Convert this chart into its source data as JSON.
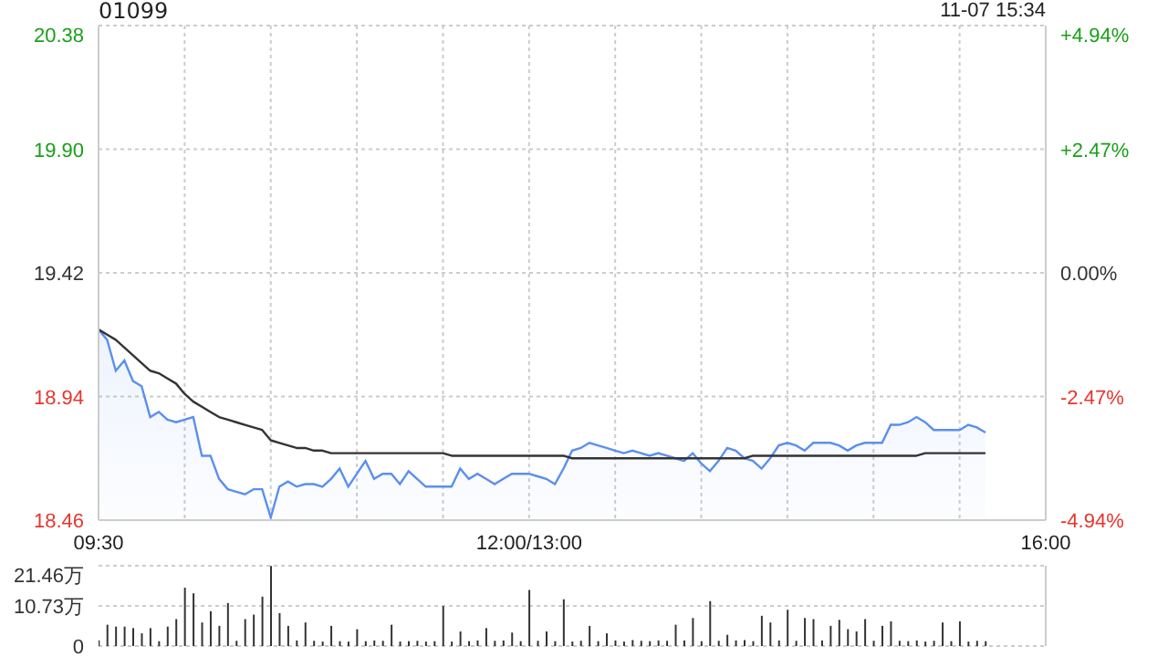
{
  "chart_data": [
    {
      "type": "area",
      "title": "01099",
      "annotations": [
        "11-07 15:34"
      ],
      "categories": [
        "09:30",
        null,
        null,
        null,
        null,
        null,
        null,
        null,
        null,
        null,
        null,
        null,
        null,
        null,
        null,
        null,
        null,
        null,
        null,
        null,
        null,
        null,
        null,
        null,
        null,
        null,
        null,
        null,
        null,
        null,
        null,
        null,
        null,
        null,
        null,
        null,
        null,
        null,
        null,
        null,
        null,
        null,
        null,
        null,
        null,
        null,
        null,
        null,
        null,
        null,
        "12:00/13:00",
        null,
        null,
        null,
        null,
        null,
        null,
        null,
        null,
        null,
        null,
        null,
        null,
        null,
        null,
        null,
        null,
        null,
        null,
        null,
        null,
        null,
        null,
        null,
        null,
        null,
        null,
        null,
        null,
        null,
        null,
        null,
        null,
        null,
        null,
        null,
        null,
        null,
        null,
        null,
        null,
        null,
        null,
        null,
        null,
        null,
        null,
        null,
        null,
        null,
        null,
        null,
        null,
        null,
        null,
        null,
        null,
        null,
        null,
        null,
        "16:00"
      ],
      "ylim": [
        18.46,
        20.38
      ],
      "yticks": [
        18.46,
        18.94,
        19.42,
        {
          "value": 19.9,
          "label": "19.90"
        },
        20.38
      ],
      "y2lim": [
        -4.94,
        4.94
      ],
      "y2ticks": [
        {
          "value": -4.94,
          "label": "-4.94%"
        },
        {
          "value": -2.47,
          "label": "-2.47%"
        },
        {
          "value": 0,
          "label": "0.00%"
        },
        {
          "value": 2.47,
          "label": "+2.47%"
        },
        {
          "value": 4.94,
          "label": "+4.94%"
        }
      ],
      "grid": true,
      "series": [
        {
          "color": "#5b8ff0",
          "values": [
            19.2,
            19.16,
            19.04,
            19.08,
            19.0,
            18.98,
            18.86,
            18.88,
            18.85,
            18.84,
            18.85,
            18.86,
            18.71,
            18.71,
            18.62,
            18.58,
            18.57,
            18.56,
            18.58,
            18.58,
            18.47,
            18.59,
            18.61,
            18.59,
            18.6,
            18.6,
            18.59,
            18.62,
            18.66,
            18.59,
            18.64,
            18.69,
            18.62,
            18.64,
            18.64,
            18.6,
            18.65,
            18.62,
            18.59,
            18.59,
            18.59,
            18.59,
            18.66,
            18.62,
            18.64,
            18.62,
            18.6,
            18.62,
            18.64,
            18.64,
            18.64,
            18.63,
            18.62,
            18.6,
            18.66,
            18.73,
            18.74,
            18.76,
            18.75,
            18.74,
            18.73,
            18.72,
            18.73,
            18.72,
            18.71,
            18.72,
            18.71,
            18.7,
            18.69,
            18.72,
            18.68,
            18.65,
            18.69,
            18.74,
            18.73,
            18.7,
            18.69,
            18.66,
            18.7,
            18.75,
            18.76,
            18.75,
            18.73,
            18.76,
            18.76,
            18.76,
            18.75,
            18.73,
            18.75,
            18.76,
            18.76,
            18.76,
            18.83,
            18.83,
            18.84,
            18.86,
            18.84,
            18.81,
            18.81,
            18.81,
            18.81,
            18.83,
            18.82,
            18.8,
            null,
            null,
            null,
            null,
            null,
            null,
            null
          ]
        },
        {
          "type": "line",
          "color": "#333333",
          "values": [
            19.2,
            19.18,
            19.16,
            19.13,
            19.1,
            19.07,
            19.04,
            19.03,
            19.01,
            18.99,
            18.95,
            18.92,
            18.9,
            18.88,
            18.86,
            18.85,
            18.84,
            18.83,
            18.82,
            18.81,
            18.77,
            18.76,
            18.75,
            18.74,
            18.74,
            18.73,
            18.73,
            18.72,
            18.72,
            18.72,
            18.72,
            18.72,
            18.72,
            18.72,
            18.72,
            18.72,
            18.72,
            18.72,
            18.72,
            18.72,
            18.72,
            18.71,
            18.71,
            18.71,
            18.71,
            18.71,
            18.71,
            18.71,
            18.71,
            18.71,
            18.71,
            18.71,
            18.71,
            18.71,
            18.71,
            18.7,
            18.7,
            18.7,
            18.7,
            18.7,
            18.7,
            18.7,
            18.7,
            18.7,
            18.7,
            18.7,
            18.7,
            18.7,
            18.7,
            18.7,
            18.7,
            18.7,
            18.7,
            18.7,
            18.7,
            18.7,
            18.71,
            18.71,
            18.71,
            18.71,
            18.71,
            18.71,
            18.71,
            18.71,
            18.71,
            18.71,
            18.71,
            18.71,
            18.71,
            18.71,
            18.71,
            18.71,
            18.71,
            18.71,
            18.71,
            18.71,
            18.72,
            18.72,
            18.72,
            18.72,
            18.72,
            18.72,
            18.72,
            18.72,
            null,
            null,
            null,
            null,
            null,
            null,
            null
          ]
        }
      ]
    },
    {
      "type": "bar",
      "tick_labels": "y",
      "grid": "y",
      "categories": [
        null,
        null,
        null,
        null,
        null,
        null,
        null,
        null,
        null,
        null,
        null,
        null,
        null,
        null,
        null,
        null,
        null,
        null,
        null,
        null,
        null,
        null,
        null,
        null,
        null,
        null,
        null,
        null,
        null,
        null,
        null,
        null,
        null,
        null,
        null,
        null,
        null,
        null,
        null,
        null,
        null,
        null,
        null,
        null,
        null,
        null,
        null,
        null,
        null,
        null,
        null,
        null,
        null,
        null,
        null,
        null,
        null,
        null,
        null,
        null,
        null,
        null,
        null,
        null,
        null,
        null,
        null,
        null,
        null,
        null,
        null,
        null,
        null,
        null,
        null,
        null,
        null,
        null,
        null,
        null,
        null,
        null,
        null,
        null,
        null,
        null,
        null,
        null,
        null,
        null,
        null,
        null,
        null,
        null,
        null,
        null,
        null,
        null,
        null,
        null,
        null,
        null,
        null,
        null,
        null,
        null,
        null,
        null,
        null,
        null,
        null
      ],
      "ylim": [
        0,
        21.46
      ],
      "yticks": [
        {
          "value": 0,
          "label": "0"
        },
        {
          "value": 10.73,
          "label": "10.73万"
        },
        {
          "value": 21.46,
          "label": "21.46万"
        }
      ],
      "series": [
        {
          "color": "#333333",
          "values": [
            1.5,
            5.7,
            5.2,
            5.2,
            4.8,
            3.4,
            4.8,
            1.3,
            5.2,
            7.2,
            15.6,
            14.1,
            6.3,
            9.3,
            5.4,
            11.5,
            1.4,
            7.2,
            8.4,
            13.2,
            21.4,
            8.8,
            5.4,
            1.5,
            6.3,
            1.4,
            1.2,
            5.4,
            1.3,
            1.2,
            4.5,
            1.3,
            1.5,
            1.4,
            5.7,
            1.2,
            1.3,
            1.4,
            1.2,
            1.3,
            10.7,
            1.2,
            3.9,
            1.3,
            1.5,
            4.8,
            1.4,
            1.5,
            3.6,
            1.3,
            15.0,
            1.4,
            3.9,
            1.3,
            12.5,
            1.2,
            1.4,
            5.4,
            1.3,
            3.4,
            1.5,
            1.2,
            1.6,
            1.4,
            1.3,
            1.5,
            1.4,
            5.7,
            1.5,
            7.5,
            1.3,
            12.0,
            1.4,
            3.0,
            1.5,
            1.6,
            1.3,
            8.1,
            6.3,
            1.5,
            9.7,
            1.4,
            7.5,
            7.2,
            1.5,
            5.4,
            7.0,
            4.5,
            3.9,
            7.2,
            1.4,
            5.4,
            6.6,
            1.4,
            1.3,
            1.5,
            1.2,
            1.4,
            6.3,
            1.3,
            6.6,
            1.2,
            1.4,
            1.3,
            null,
            null,
            null,
            null,
            null,
            null,
            null
          ]
        }
      ]
    }
  ]
}
